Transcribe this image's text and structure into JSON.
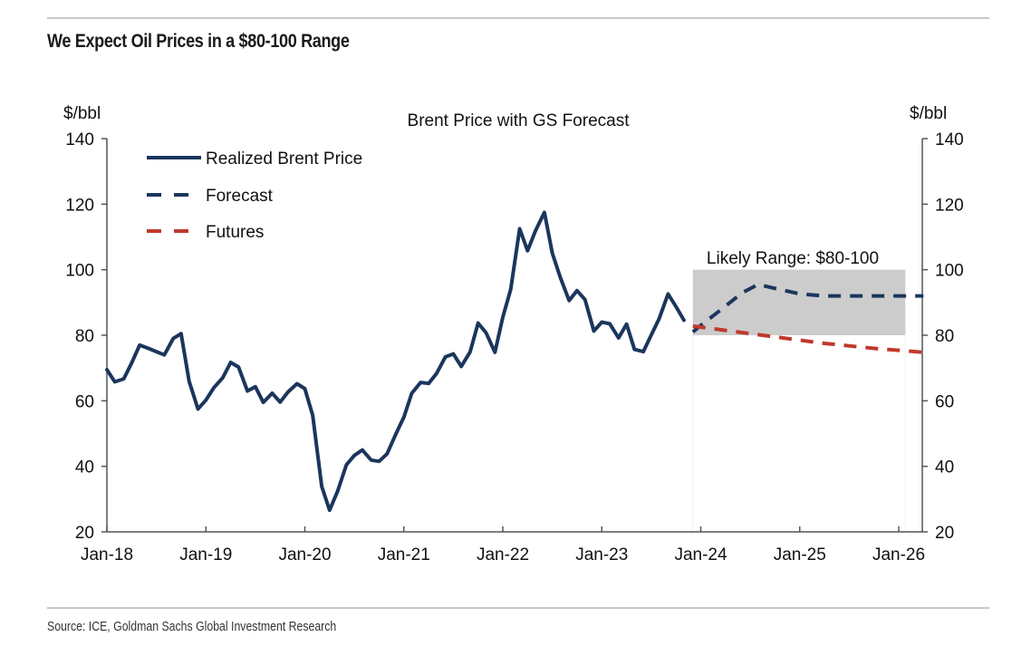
{
  "header": {
    "title": "We Expect Oil Prices in a $80-100 Range"
  },
  "footer": {
    "source": "Source: ICE, Goldman Sachs Global Investment Research"
  },
  "colors": {
    "realized": "#1b365d",
    "forecast": "#1b365d",
    "futures": "#c0392b",
    "range_fill": "#cccccc",
    "axis": "#555555",
    "rule": "#c8c8c8"
  },
  "chart_data": {
    "type": "line",
    "title": "Brent Price with GS Forecast",
    "ylabel_left": "$/bbl",
    "ylabel_right": "$/bbl",
    "xlabel": "",
    "ylim": [
      20,
      140
    ],
    "yticks": [
      20,
      40,
      60,
      80,
      100,
      120,
      140
    ],
    "xlim": [
      2018.0,
      2026.25
    ],
    "xticks": [
      {
        "label": "Jan-18",
        "x": 2018
      },
      {
        "label": "Jan-19",
        "x": 2019
      },
      {
        "label": "Jan-20",
        "x": 2020
      },
      {
        "label": "Jan-21",
        "x": 2021
      },
      {
        "label": "Jan-22",
        "x": 2022
      },
      {
        "label": "Jan-23",
        "x": 2023
      },
      {
        "label": "Jan-24",
        "x": 2024
      },
      {
        "label": "Jan-25",
        "x": 2025
      },
      {
        "label": "Jan-26",
        "x": 2026
      }
    ],
    "grid": false,
    "legend_position": "top-left",
    "annotation": {
      "label": "Likely Range: $80-100",
      "x_start": 2023.92,
      "x_end": 2026.25,
      "y_low": 80,
      "y_high": 100
    },
    "series": [
      {
        "name": "Realized Brent Price",
        "style": "solid",
        "points": [
          [
            2018.0,
            69.5
          ],
          [
            2018.08,
            65.8
          ],
          [
            2018.17,
            66.7
          ],
          [
            2018.25,
            71.5
          ],
          [
            2018.33,
            77.0
          ],
          [
            2018.42,
            76.0
          ],
          [
            2018.5,
            75.0
          ],
          [
            2018.58,
            74.0
          ],
          [
            2018.67,
            79.0
          ],
          [
            2018.75,
            80.5
          ],
          [
            2018.83,
            66.0
          ],
          [
            2018.92,
            57.5
          ],
          [
            2019.0,
            60.2
          ],
          [
            2019.08,
            64.0
          ],
          [
            2019.17,
            67.0
          ],
          [
            2019.25,
            71.7
          ],
          [
            2019.33,
            70.3
          ],
          [
            2019.42,
            63.0
          ],
          [
            2019.5,
            64.3
          ],
          [
            2019.58,
            59.5
          ],
          [
            2019.67,
            62.3
          ],
          [
            2019.75,
            59.6
          ],
          [
            2019.83,
            62.7
          ],
          [
            2019.92,
            65.2
          ],
          [
            2020.0,
            63.7
          ],
          [
            2020.08,
            55.5
          ],
          [
            2020.17,
            33.9
          ],
          [
            2020.25,
            26.6
          ],
          [
            2020.33,
            32.4
          ],
          [
            2020.42,
            40.5
          ],
          [
            2020.5,
            43.3
          ],
          [
            2020.58,
            45.0
          ],
          [
            2020.67,
            41.9
          ],
          [
            2020.75,
            41.5
          ],
          [
            2020.83,
            43.8
          ],
          [
            2020.92,
            49.9
          ],
          [
            2021.0,
            55.0
          ],
          [
            2021.08,
            62.3
          ],
          [
            2021.17,
            65.6
          ],
          [
            2021.25,
            65.3
          ],
          [
            2021.33,
            68.3
          ],
          [
            2021.42,
            73.4
          ],
          [
            2021.5,
            74.3
          ],
          [
            2021.58,
            70.5
          ],
          [
            2021.67,
            74.9
          ],
          [
            2021.75,
            83.7
          ],
          [
            2021.83,
            80.8
          ],
          [
            2021.92,
            74.8
          ],
          [
            2022.0,
            85.5
          ],
          [
            2022.08,
            94.0
          ],
          [
            2022.17,
            112.5
          ],
          [
            2022.25,
            105.8
          ],
          [
            2022.33,
            111.9
          ],
          [
            2022.42,
            117.5
          ],
          [
            2022.5,
            105.1
          ],
          [
            2022.58,
            97.7
          ],
          [
            2022.67,
            90.6
          ],
          [
            2022.75,
            93.6
          ],
          [
            2022.83,
            90.9
          ],
          [
            2022.92,
            81.3
          ],
          [
            2023.0,
            84.0
          ],
          [
            2023.08,
            83.5
          ],
          [
            2023.17,
            79.2
          ],
          [
            2023.25,
            83.4
          ],
          [
            2023.33,
            75.7
          ],
          [
            2023.42,
            75.0
          ],
          [
            2023.5,
            80.1
          ],
          [
            2023.58,
            85.1
          ],
          [
            2023.67,
            92.6
          ],
          [
            2023.75,
            88.7
          ],
          [
            2023.83,
            84.6
          ]
        ]
      },
      {
        "name": "Forecast",
        "style": "dashed",
        "points": [
          [
            2023.92,
            81.0
          ],
          [
            2024.0,
            83.0
          ],
          [
            2024.17,
            87.0
          ],
          [
            2024.42,
            93.0
          ],
          [
            2024.58,
            95.5
          ],
          [
            2024.75,
            94.3
          ],
          [
            2025.0,
            92.6
          ],
          [
            2025.25,
            92.0
          ],
          [
            2025.5,
            92.0
          ],
          [
            2025.75,
            92.0
          ],
          [
            2026.25,
            92.0
          ]
        ]
      },
      {
        "name": "Futures",
        "style": "dashed",
        "points": [
          [
            2023.92,
            82.8
          ],
          [
            2024.25,
            81.5
          ],
          [
            2024.75,
            79.5
          ],
          [
            2025.25,
            77.5
          ],
          [
            2025.75,
            76.0
          ],
          [
            2026.25,
            74.8
          ]
        ]
      }
    ]
  }
}
